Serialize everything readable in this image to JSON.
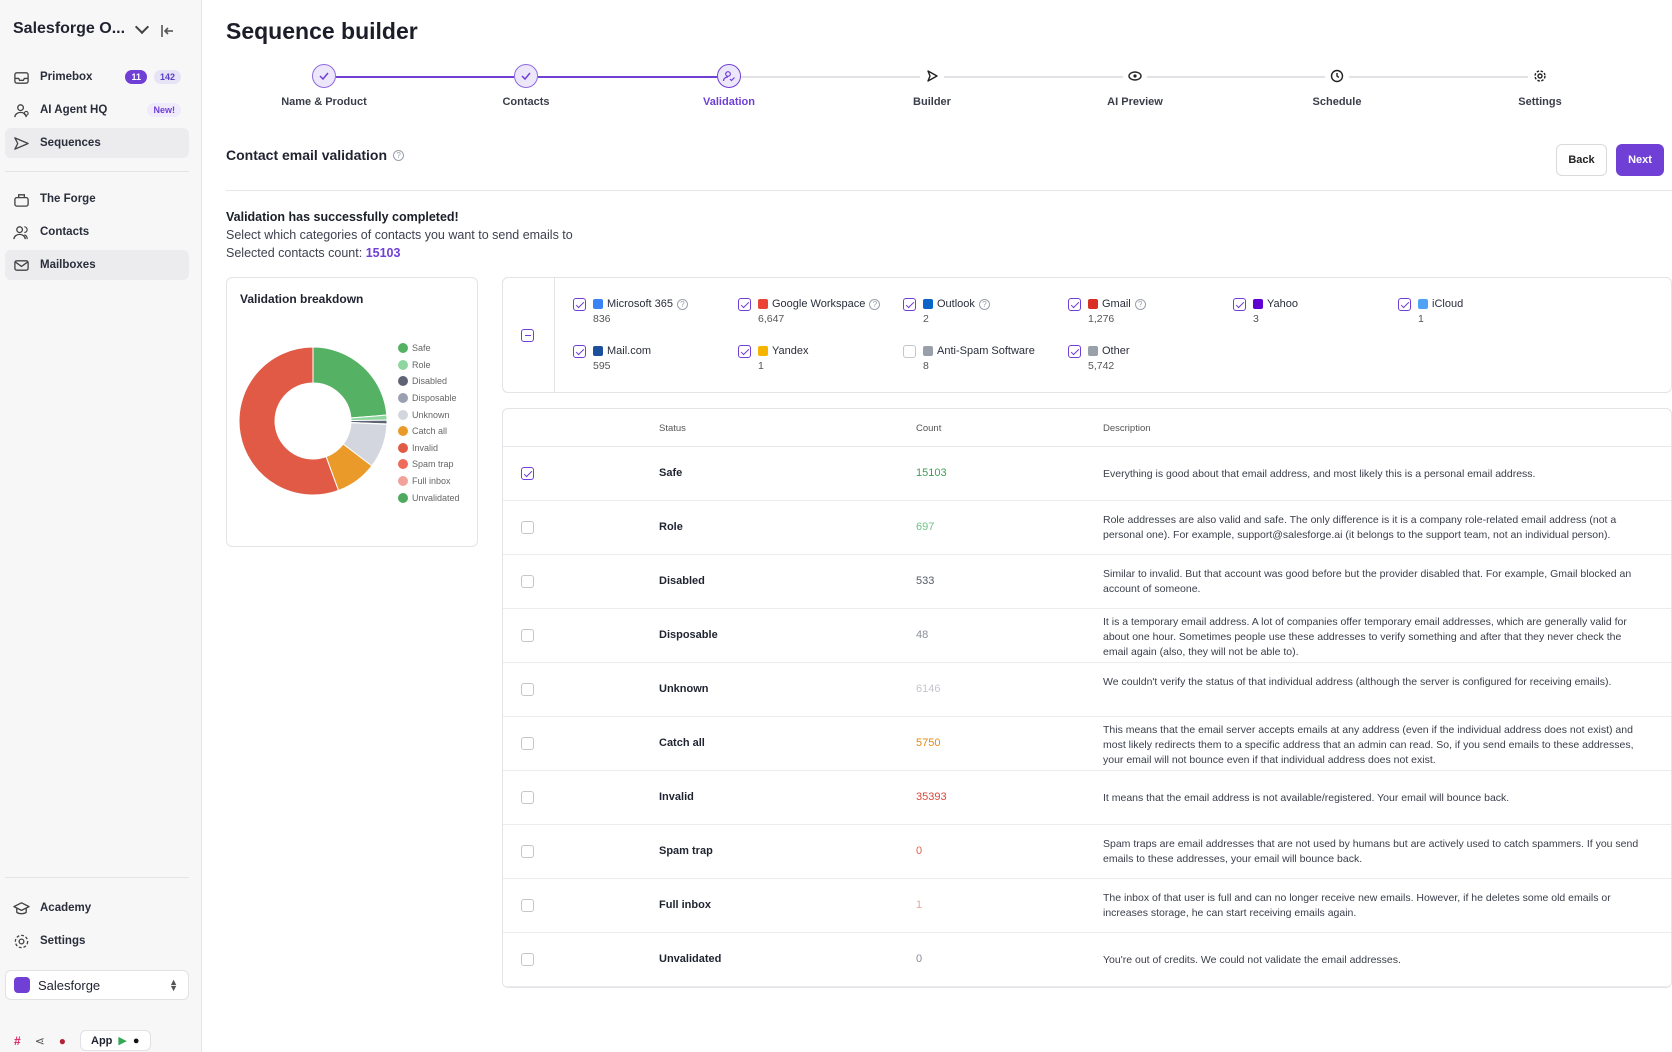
{
  "sidebar": {
    "org_name": "Salesforge O...",
    "items": [
      {
        "label": "Primebox",
        "badge1": "11",
        "badge2": "142"
      },
      {
        "label": "AI Agent HQ",
        "badge": "New!"
      },
      {
        "label": "Sequences"
      },
      {
        "label": "The Forge"
      },
      {
        "label": "Contacts"
      },
      {
        "label": "Mailboxes"
      }
    ],
    "bottom_items": [
      {
        "label": "Academy"
      },
      {
        "label": "Settings"
      }
    ],
    "workspace": "Salesforge",
    "app_label": "App"
  },
  "page": {
    "title": "Sequence builder"
  },
  "steps": [
    {
      "label": "Name & Product",
      "state": "done"
    },
    {
      "label": "Contacts",
      "state": "done"
    },
    {
      "label": "Validation",
      "state": "current"
    },
    {
      "label": "Builder",
      "state": "todo"
    },
    {
      "label": "AI Preview",
      "state": "todo"
    },
    {
      "label": "Schedule",
      "state": "todo"
    },
    {
      "label": "Settings",
      "state": "todo"
    }
  ],
  "section": {
    "title": "Contact email validation",
    "back_label": "Back",
    "next_label": "Next"
  },
  "message": {
    "heading": "Validation has successfully completed!",
    "sub": "Select which categories of contacts you want to send emails to",
    "count_label": "Selected contacts count:",
    "count_value": "15103"
  },
  "breakdown": {
    "title": "Validation breakdown",
    "legend": [
      {
        "label": "Safe",
        "color": "#55b164"
      },
      {
        "label": "Role",
        "color": "#8fd6a0"
      },
      {
        "label": "Disabled",
        "color": "#5f6475"
      },
      {
        "label": "Disposable",
        "color": "#9aa0b2"
      },
      {
        "label": "Unknown",
        "color": "#d3d6de"
      },
      {
        "label": "Catch all",
        "color": "#ea9a28"
      },
      {
        "label": "Invalid",
        "color": "#e05a45"
      },
      {
        "label": "Spam trap",
        "color": "#ef6b5b"
      },
      {
        "label": "Full inbox",
        "color": "#f2a29b"
      },
      {
        "label": "Unvalidated",
        "color": "#4ea95d"
      }
    ]
  },
  "chart_data": {
    "type": "pie",
    "categories": [
      "Safe",
      "Role",
      "Disabled",
      "Disposable",
      "Unknown",
      "Catch all",
      "Invalid",
      "Spam trap",
      "Full inbox",
      "Unvalidated"
    ],
    "values": [
      15103,
      697,
      533,
      48,
      6146,
      5750,
      35393,
      0,
      1,
      0
    ],
    "colors": [
      "#55b164",
      "#8fd6a0",
      "#5f6475",
      "#9aa0b2",
      "#d3d6de",
      "#ea9a28",
      "#e05a45",
      "#ef6b5b",
      "#f2a29b",
      "#4ea95d"
    ],
    "title": "Validation breakdown",
    "legend": "right"
  },
  "providers": [
    {
      "name": "Microsoft 365",
      "count": "836",
      "checked": true,
      "help": true,
      "icon_color": "#3b82f6"
    },
    {
      "name": "Google Workspace",
      "count": "6,647",
      "checked": true,
      "help": true,
      "icon_color": "#ea4335"
    },
    {
      "name": "Outlook",
      "count": "2",
      "checked": true,
      "help": true,
      "icon_color": "#0a64c8"
    },
    {
      "name": "Gmail",
      "count": "1,276",
      "checked": true,
      "help": true,
      "icon_color": "#d93025"
    },
    {
      "name": "Yahoo",
      "count": "3",
      "checked": true,
      "help": false,
      "icon_color": "#6001d2"
    },
    {
      "name": "iCloud",
      "count": "1",
      "checked": true,
      "help": false,
      "icon_color": "#4fa3f7"
    },
    {
      "name": "Mail.com",
      "count": "595",
      "checked": true,
      "help": false,
      "icon_color": "#1c4f9c"
    },
    {
      "name": "Yandex",
      "count": "1",
      "checked": true,
      "help": false,
      "icon_color": "#f5b400"
    },
    {
      "name": "Anti-Spam Software",
      "count": "8",
      "checked": false,
      "help": false,
      "icon_color": "#9aa0aa"
    },
    {
      "name": "Other",
      "count": "5,742",
      "checked": true,
      "help": false,
      "icon_color": "#9aa0aa"
    }
  ],
  "table": {
    "headers": {
      "status": "Status",
      "count": "Count",
      "description": "Description"
    },
    "rows": [
      {
        "status": "Safe",
        "count": "15103",
        "count_color": "#3f9e57",
        "checked": true,
        "description": "Everything is good about that email address, and most likely this is a personal email address."
      },
      {
        "status": "Role",
        "count": "697",
        "count_color": "#6cc387",
        "checked": false,
        "description": "Role addresses are also valid and safe. The only difference is it is a company role-related email address (not a personal one). For example, support@salesforge.ai (it belongs to the support team, not an individual person)."
      },
      {
        "status": "Disabled",
        "count": "533",
        "count_color": "#555a66",
        "checked": false,
        "description": "Similar to invalid. But that account was good before but the provider disabled that. For example, Gmail blocked an account of someone."
      },
      {
        "status": "Disposable",
        "count": "48",
        "count_color": "#8a8f9c",
        "checked": false,
        "description": "It is a temporary email address. A lot of companies offer temporary email addresses, which are generally valid for about one hour. Sometimes people use these addresses to verify something and after that they never check the email again (also, they will not be able to)."
      },
      {
        "status": "Unknown",
        "count": "6146",
        "count_color": "#c4c7cf",
        "checked": false,
        "description": "We couldn't verify the status of that individual address (although the server is configured for receiving emails)."
      },
      {
        "status": "Catch all",
        "count": "5750",
        "count_color": "#e08a14",
        "checked": false,
        "description": "This means that the email server accepts emails at any address (even if the individual address does not exist) and most likely redirects them to a specific address that an admin can read. So, if you send emails to these addresses, your email will not bounce even if that individual address does not exist."
      },
      {
        "status": "Invalid",
        "count": "35393",
        "count_color": "#d9483a",
        "checked": false,
        "description": "It means that the email address is not available/registered. Your email will bounce back."
      },
      {
        "status": "Spam trap",
        "count": "0",
        "count_color": "#e3604f",
        "checked": false,
        "description": "Spam traps are email addresses that are not used by humans but are actively used to catch spammers. If you send emails to these addresses, your email will bounce back."
      },
      {
        "status": "Full inbox",
        "count": "1",
        "count_color": "#f0a59d",
        "checked": false,
        "description": "The inbox of that user is full and can no longer receive new emails. However, if he deletes some old emails or increases storage, he can start receiving emails again."
      },
      {
        "status": "Unvalidated",
        "count": "0",
        "count_color": "#888c96",
        "checked": false,
        "description": "You're out of credits. We could not validate the email addresses."
      }
    ]
  }
}
